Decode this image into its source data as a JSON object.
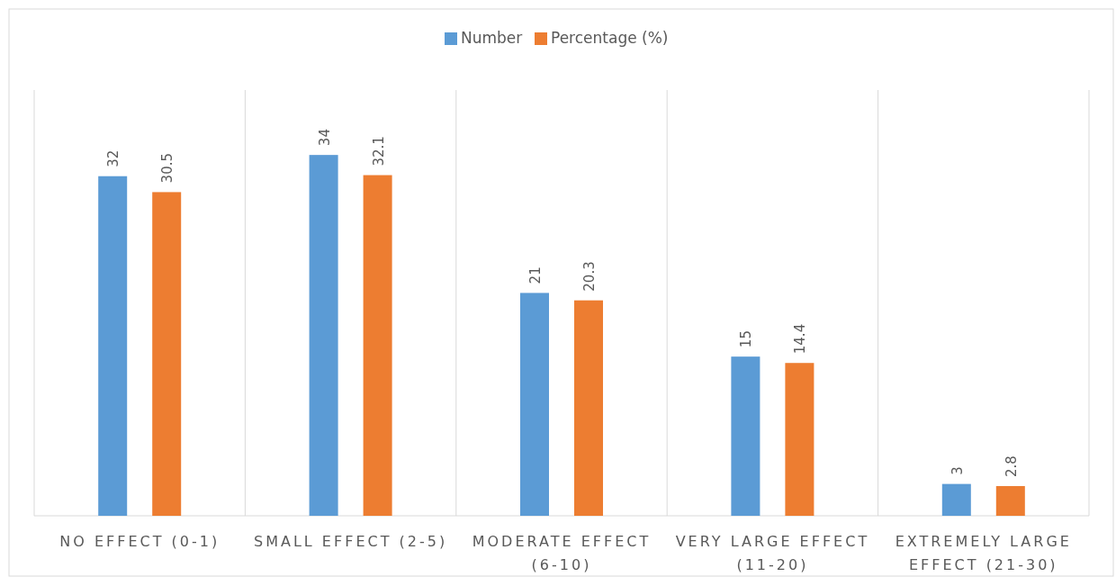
{
  "chart_data": {
    "type": "bar",
    "categories": [
      "NO EFFECT (0-1)",
      "SMALL EFFECT (2-5)",
      "MODERATE EFFECT (6-10)",
      "VERY LARGE EFFECT (11-20)",
      "EXTREMELY LARGE EFFECT (21-30)"
    ],
    "series": [
      {
        "name": "Number",
        "color": "#5b9bd5",
        "values": [
          32,
          34,
          21,
          15,
          3
        ]
      },
      {
        "name": "Percentage (%)",
        "color": "#ed7d31",
        "values": [
          30.5,
          32.1,
          20.3,
          14.4,
          2.8
        ]
      }
    ],
    "data_labels": true,
    "grid": "x",
    "legend": "top"
  }
}
